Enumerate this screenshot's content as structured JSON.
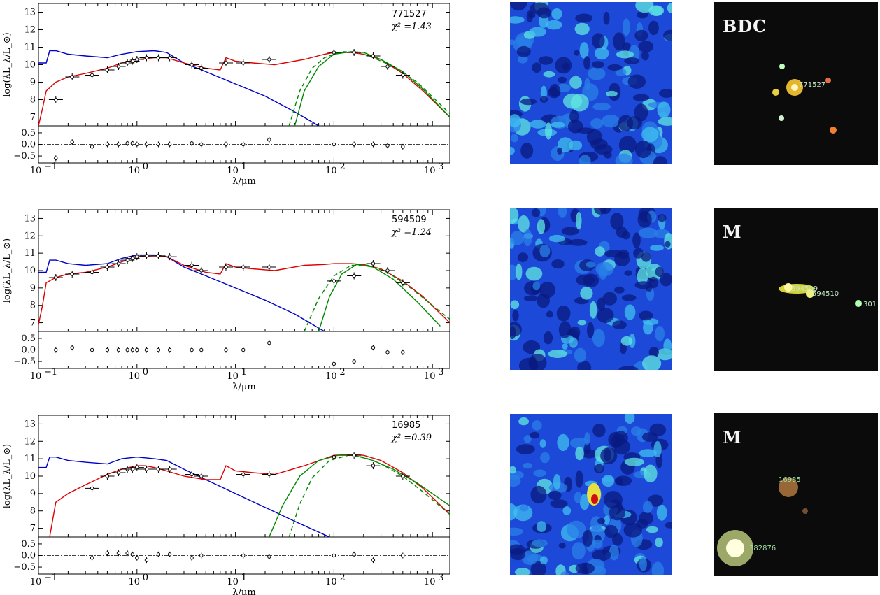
{
  "figure": {
    "panels": [
      {
        "id": "771527",
        "chi2_label": "χ² =1.43",
        "morph": "BDC",
        "map_peak": null,
        "labels": [
          {
            "text": "771527",
            "color": "#c8e8c8"
          }
        ]
      },
      {
        "id": "594509",
        "chi2_label": "χ² =1.24",
        "morph": "M",
        "map_peak": null,
        "labels": [
          {
            "text": "594509",
            "color": "#c8e8c8"
          },
          {
            "text": "594510",
            "color": "#c8e8c8"
          },
          {
            "text": "301",
            "color": "#c8e8c8"
          }
        ]
      },
      {
        "id": "16985",
        "chi2_label": "χ² =0.39",
        "morph": "M",
        "map_peak": "center-left",
        "labels": [
          {
            "text": "16985",
            "color": "#9fe09f"
          },
          {
            "text": "382876",
            "color": "#9fe09f"
          }
        ]
      }
    ]
  },
  "axes": {
    "xlabel": "λ/μm",
    "ylabel": "log(λL_λ/L_⊙)",
    "y_ticks": [
      "7",
      "8",
      "9",
      "10",
      "11",
      "12",
      "13"
    ],
    "res_ticks": [
      "0.5",
      "0.0",
      "−0.5"
    ],
    "x_ticks": [
      {
        "label": "10",
        "exp": "−1",
        "value": 0.1
      },
      {
        "label": "10",
        "exp": "0",
        "value": 1
      },
      {
        "label": "10",
        "exp": "1",
        "value": 10
      },
      {
        "label": "10",
        "exp": "2",
        "value": 100
      },
      {
        "label": "10",
        "exp": "3",
        "value": 1000
      }
    ]
  },
  "chart_data": [
    {
      "type": "line",
      "object": "771527",
      "x_scale": "log",
      "xlim": [
        0.1,
        1500
      ],
      "ylim": [
        6.5,
        13.5
      ],
      "residual_ylim": [
        -0.8,
        0.8
      ],
      "series": [
        {
          "name": "",
          "color": "#0000cc",
          "style": "solid",
          "x": [
            0.1,
            0.12,
            0.13,
            0.15,
            0.2,
            0.3,
            0.5,
            0.7,
            1.0,
            1.5,
            2.0,
            3.0,
            5.0,
            10,
            20,
            40,
            70
          ],
          "y": [
            10.1,
            10.1,
            10.8,
            10.8,
            10.6,
            10.5,
            10.4,
            10.6,
            10.75,
            10.8,
            10.7,
            10.1,
            9.6,
            8.9,
            8.2,
            7.3,
            6.5
          ]
        },
        {
          "name": "",
          "color": "#dd0000",
          "style": "solid",
          "x": [
            0.1,
            0.11,
            0.12,
            0.15,
            0.2,
            0.3,
            0.5,
            0.7,
            1.0,
            1.5,
            2.0,
            3.0,
            5.0,
            7.0,
            8.0,
            10,
            15,
            25,
            50,
            80,
            100,
            150,
            200,
            300,
            500,
            800,
            1500
          ],
          "y": [
            6.5,
            7.5,
            8.5,
            9.0,
            9.3,
            9.5,
            9.8,
            10.1,
            10.3,
            10.4,
            10.4,
            10.1,
            9.8,
            9.7,
            10.4,
            10.2,
            10.1,
            10.0,
            10.3,
            10.6,
            10.7,
            10.7,
            10.6,
            10.3,
            9.5,
            8.5,
            7.0
          ]
        },
        {
          "name": "",
          "color": "#008800",
          "style": "solid",
          "x": [
            40,
            50,
            70,
            100,
            150,
            200,
            300,
            500,
            800,
            1500
          ],
          "y": [
            6.5,
            8.5,
            9.9,
            10.6,
            10.75,
            10.7,
            10.3,
            9.6,
            8.6,
            7.0
          ]
        },
        {
          "name": "",
          "color": "#008800",
          "style": "dashed",
          "x": [
            35,
            45,
            60,
            80,
            120,
            180,
            250,
            400,
            700,
            1500
          ],
          "y": [
            6.5,
            8.5,
            9.8,
            10.4,
            10.75,
            10.7,
            10.4,
            9.9,
            9.0,
            7.2
          ]
        }
      ],
      "points": {
        "x": [
          0.15,
          0.22,
          0.35,
          0.5,
          0.65,
          0.8,
          0.9,
          1.0,
          1.25,
          1.65,
          2.15,
          3.6,
          4.5,
          8.0,
          12,
          22,
          100,
          160,
          250,
          350,
          500
        ],
        "y": [
          8.0,
          9.3,
          9.4,
          9.7,
          9.9,
          10.1,
          10.2,
          10.3,
          10.4,
          10.4,
          10.4,
          10.0,
          9.8,
          10.1,
          10.1,
          10.3,
          10.7,
          10.7,
          10.5,
          9.9,
          9.4
        ],
        "residual": [
          -0.6,
          0.1,
          -0.1,
          0.0,
          0.0,
          0.05,
          0.05,
          0.0,
          0.0,
          0.0,
          0.0,
          0.05,
          0.0,
          0.0,
          0.0,
          0.2,
          0.0,
          0.0,
          0.0,
          -0.05,
          -0.1
        ]
      }
    },
    {
      "type": "line",
      "object": "594509",
      "x_scale": "log",
      "xlim": [
        0.1,
        1500
      ],
      "ylim": [
        6.5,
        13.5
      ],
      "residual_ylim": [
        -0.8,
        0.8
      ],
      "series": [
        {
          "name": "",
          "color": "#0000cc",
          "style": "solid",
          "x": [
            0.1,
            0.12,
            0.13,
            0.15,
            0.2,
            0.3,
            0.5,
            0.7,
            1.0,
            1.5,
            2.0,
            3.0,
            5.0,
            10,
            20,
            40,
            80
          ],
          "y": [
            9.9,
            9.9,
            10.6,
            10.6,
            10.4,
            10.3,
            10.4,
            10.7,
            10.9,
            10.9,
            10.8,
            10.2,
            9.7,
            9.0,
            8.3,
            7.5,
            6.5
          ]
        },
        {
          "name": "",
          "color": "#dd0000",
          "style": "solid",
          "x": [
            0.1,
            0.11,
            0.12,
            0.15,
            0.2,
            0.3,
            0.5,
            0.7,
            1.0,
            1.5,
            2.0,
            3.0,
            5.0,
            7.0,
            8.0,
            10,
            15,
            25,
            50,
            80,
            100,
            150,
            200,
            300,
            500,
            800,
            1500
          ],
          "y": [
            6.9,
            8.0,
            9.3,
            9.6,
            9.8,
            9.9,
            10.2,
            10.5,
            10.8,
            10.85,
            10.8,
            10.3,
            9.9,
            9.8,
            10.4,
            10.2,
            10.1,
            10.0,
            10.3,
            10.35,
            10.4,
            10.4,
            10.35,
            10.1,
            9.4,
            8.5,
            7.0
          ]
        },
        {
          "name": "",
          "color": "#008800",
          "style": "solid",
          "x": [
            70,
            90,
            120,
            170,
            250,
            400,
            700,
            1200
          ],
          "y": [
            6.5,
            8.5,
            9.8,
            10.35,
            10.2,
            9.5,
            8.2,
            6.8
          ]
        },
        {
          "name": "",
          "color": "#008800",
          "style": "dashed",
          "x": [
            50,
            70,
            100,
            150,
            220,
            350,
            600,
            1500
          ],
          "y": [
            6.5,
            8.4,
            9.7,
            10.3,
            10.3,
            9.9,
            9.0,
            7.2
          ]
        }
      ],
      "points": {
        "x": [
          0.15,
          0.22,
          0.35,
          0.5,
          0.65,
          0.8,
          0.9,
          1.0,
          1.25,
          1.65,
          2.15,
          3.6,
          4.5,
          8.0,
          12,
          22,
          100,
          160,
          250,
          350,
          500
        ],
        "y": [
          9.6,
          9.8,
          9.9,
          10.2,
          10.4,
          10.6,
          10.7,
          10.8,
          10.85,
          10.85,
          10.8,
          10.3,
          10.0,
          10.2,
          10.2,
          10.2,
          9.4,
          9.7,
          10.4,
          10.0,
          9.3
        ],
        "residual": [
          0.0,
          0.1,
          0.0,
          0.0,
          0.0,
          0.0,
          0.0,
          0.0,
          0.0,
          0.0,
          0.0,
          0.0,
          0.0,
          0.0,
          0.0,
          0.3,
          -0.6,
          -0.5,
          0.1,
          -0.1,
          -0.1
        ]
      }
    },
    {
      "type": "line",
      "object": "16985",
      "x_scale": "log",
      "xlim": [
        0.1,
        1500
      ],
      "ylim": [
        6.5,
        13.5
      ],
      "residual_ylim": [
        -0.8,
        0.8
      ],
      "series": [
        {
          "name": "",
          "color": "#0000cc",
          "style": "solid",
          "x": [
            0.1,
            0.12,
            0.13,
            0.15,
            0.2,
            0.3,
            0.5,
            0.7,
            1.0,
            1.5,
            2.0,
            3.0,
            5.0,
            10,
            20,
            40,
            90
          ],
          "y": [
            10.5,
            10.5,
            11.1,
            11.1,
            10.9,
            10.8,
            10.7,
            11.0,
            11.1,
            11.0,
            10.9,
            10.4,
            9.8,
            9.0,
            8.2,
            7.4,
            6.5
          ]
        },
        {
          "name": "",
          "color": "#dd0000",
          "style": "solid",
          "x": [
            0.13,
            0.15,
            0.2,
            0.3,
            0.5,
            0.7,
            1.0,
            1.2,
            1.5,
            2.0,
            3.0,
            5.0,
            7.0,
            8.0,
            10,
            15,
            25,
            50,
            80,
            100,
            150,
            200,
            300,
            500,
            800,
            1500
          ],
          "y": [
            6.5,
            8.5,
            9.0,
            9.5,
            10.1,
            10.4,
            10.6,
            10.6,
            10.5,
            10.3,
            10.0,
            9.8,
            9.8,
            10.6,
            10.3,
            10.2,
            10.1,
            10.6,
            11.0,
            11.2,
            11.25,
            11.2,
            10.9,
            10.2,
            9.3,
            7.8
          ]
        },
        {
          "name": "",
          "color": "#008800",
          "style": "solid",
          "x": [
            22,
            30,
            45,
            70,
            110,
            160,
            250,
            400,
            700,
            1500
          ],
          "y": [
            6.5,
            8.3,
            10.0,
            10.9,
            11.2,
            11.2,
            10.9,
            10.4,
            9.6,
            8.3
          ]
        },
        {
          "name": "",
          "color": "#008800",
          "style": "dashed",
          "x": [
            35,
            45,
            60,
            90,
            140,
            200,
            300,
            500,
            800,
            1500
          ],
          "y": [
            6.5,
            8.4,
            9.9,
            10.9,
            11.2,
            11.1,
            10.7,
            10.0,
            9.1,
            7.8
          ]
        }
      ],
      "points": {
        "x": [
          0.35,
          0.5,
          0.65,
          0.8,
          0.9,
          1.0,
          1.25,
          1.65,
          2.15,
          3.6,
          4.5,
          12,
          22,
          100,
          160,
          250,
          500
        ],
        "y": [
          9.3,
          10.0,
          10.2,
          10.4,
          10.4,
          10.5,
          10.4,
          10.4,
          10.4,
          10.1,
          10.0,
          10.1,
          10.1,
          11.1,
          11.2,
          10.6,
          10.0
        ],
        "residual": [
          -0.1,
          0.1,
          0.1,
          0.1,
          0.05,
          -0.1,
          -0.2,
          0.05,
          0.05,
          -0.1,
          0.0,
          0.0,
          -0.05,
          0.0,
          0.05,
          -0.2,
          0.0
        ]
      }
    }
  ]
}
